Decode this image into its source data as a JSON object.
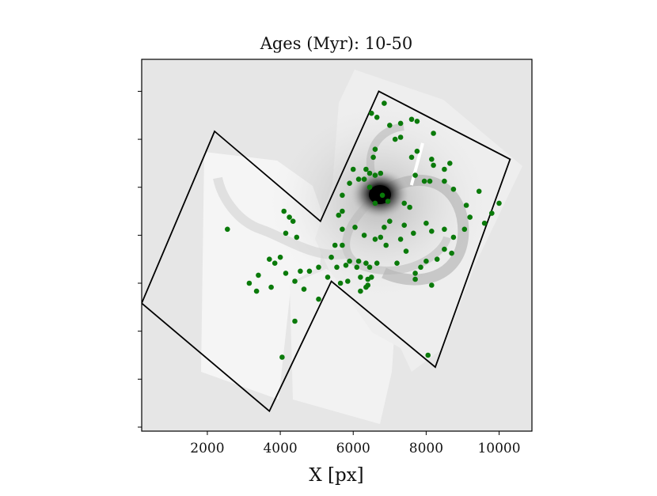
{
  "chart_data": {
    "type": "scatter",
    "title": "Ages (Myr): 10-50",
    "xlabel": "X [px]",
    "ylabel": "",
    "xlim": [
      200,
      10900
    ],
    "ylim": [
      9500,
      200
    ],
    "x_ticks": [
      2000,
      4000,
      6000,
      8000,
      10000
    ],
    "x_tick_labels": [
      "2000",
      "4000",
      "6000",
      "8000",
      "10000"
    ],
    "y_ticks": [
      1000,
      2200,
      3400,
      4600,
      5800,
      7000,
      8200,
      9400
    ],
    "y_tick_labels_visible": false,
    "grid": false,
    "background": "grayscale galaxy image (spiral galaxy mosaic)",
    "marker_color": "#0a7a0a",
    "footprint_color": "#000000",
    "footprint_polygon": [
      [
        2200,
        2000
      ],
      [
        5100,
        4250
      ],
      [
        6700,
        1000
      ],
      [
        10300,
        2700
      ],
      [
        8250,
        7900
      ],
      [
        5400,
        5750
      ],
      [
        3700,
        9000
      ],
      [
        200,
        6300
      ]
    ],
    "series": [
      {
        "name": "",
        "points": [
          [
            6850,
            1300
          ],
          [
            6650,
            1650
          ],
          [
            6500,
            1550
          ],
          [
            7000,
            1850
          ],
          [
            7300,
            1800
          ],
          [
            7750,
            1750
          ],
          [
            7600,
            1700
          ],
          [
            8200,
            2050
          ],
          [
            7750,
            2500
          ],
          [
            7600,
            2650
          ],
          [
            8150,
            2700
          ],
          [
            8200,
            2850
          ],
          [
            8500,
            2950
          ],
          [
            8650,
            2800
          ],
          [
            7950,
            3250
          ],
          [
            8100,
            3250
          ],
          [
            8500,
            3250
          ],
          [
            8750,
            3450
          ],
          [
            9100,
            3850
          ],
          [
            9450,
            3500
          ],
          [
            9600,
            4300
          ],
          [
            9800,
            4050
          ],
          [
            10000,
            3800
          ],
          [
            9200,
            4150
          ],
          [
            9050,
            4450
          ],
          [
            8750,
            4650
          ],
          [
            8500,
            4450
          ],
          [
            8150,
            4500
          ],
          [
            8000,
            4300
          ],
          [
            7650,
            4550
          ],
          [
            8500,
            4950
          ],
          [
            8700,
            5050
          ],
          [
            8300,
            5200
          ],
          [
            8000,
            5250
          ],
          [
            7850,
            5400
          ],
          [
            7450,
            5000
          ],
          [
            7200,
            5300
          ],
          [
            7700,
            5550
          ],
          [
            7700,
            5700
          ],
          [
            8150,
            5850
          ],
          [
            8050,
            7600
          ],
          [
            6750,
            4650
          ],
          [
            6300,
            4600
          ],
          [
            6050,
            4400
          ],
          [
            5700,
            4450
          ],
          [
            5700,
            4850
          ],
          [
            5500,
            4850
          ],
          [
            5400,
            5150
          ],
          [
            5550,
            5400
          ],
          [
            5800,
            5350
          ],
          [
            5900,
            5250
          ],
          [
            6100,
            5400
          ],
          [
            6150,
            5250
          ],
          [
            6350,
            5300
          ],
          [
            6650,
            5300
          ],
          [
            6450,
            5400
          ],
          [
            6200,
            5650
          ],
          [
            6400,
            5700
          ],
          [
            6500,
            5650
          ],
          [
            6400,
            5850
          ],
          [
            6350,
            5900
          ],
          [
            6200,
            6000
          ],
          [
            5850,
            5750
          ],
          [
            5650,
            5800
          ],
          [
            5300,
            5650
          ],
          [
            5050,
            5400
          ],
          [
            4800,
            5500
          ],
          [
            4550,
            5500
          ],
          [
            4650,
            5950
          ],
          [
            4400,
            5750
          ],
          [
            4150,
            5550
          ],
          [
            4000,
            5150
          ],
          [
            4150,
            4550
          ],
          [
            4450,
            4650
          ],
          [
            4350,
            4250
          ],
          [
            4100,
            4000
          ],
          [
            4250,
            4150
          ],
          [
            6600,
            3800
          ],
          [
            6450,
            3400
          ],
          [
            6750,
            3050
          ],
          [
            6600,
            3100
          ],
          [
            6450,
            3050
          ],
          [
            6300,
            3200
          ],
          [
            6150,
            3200
          ],
          [
            6000,
            2950
          ],
          [
            5900,
            3300
          ],
          [
            5700,
            3600
          ],
          [
            5700,
            4000
          ],
          [
            5600,
            4100
          ],
          [
            6950,
            3750
          ],
          [
            7000,
            4250
          ],
          [
            7400,
            3800
          ],
          [
            7550,
            3900
          ],
          [
            6800,
            3600
          ],
          [
            6600,
            2450
          ],
          [
            6550,
            2650
          ],
          [
            6350,
            2950
          ],
          [
            7700,
            3100
          ],
          [
            7300,
            2150
          ],
          [
            7150,
            2200
          ],
          [
            6850,
            4400
          ],
          [
            6600,
            4700
          ],
          [
            6900,
            4850
          ],
          [
            7300,
            4700
          ],
          [
            7400,
            4350
          ],
          [
            2550,
            4450
          ],
          [
            3150,
            5800
          ],
          [
            3400,
            5600
          ],
          [
            3700,
            5200
          ],
          [
            3750,
            5900
          ],
          [
            3850,
            5300
          ],
          [
            4400,
            6750
          ],
          [
            4050,
            7650
          ],
          [
            3350,
            6000
          ],
          [
            5050,
            6200
          ]
        ]
      }
    ]
  }
}
